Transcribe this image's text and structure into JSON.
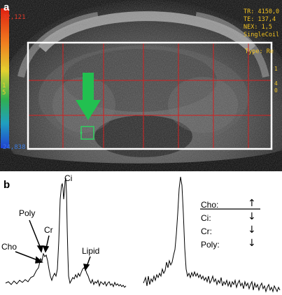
{
  "panel_a": {
    "label": "a",
    "scale_top": "32,121",
    "scale_bottom": "24,838",
    "scale_marks": [
      "R",
      "1",
      "5"
    ],
    "params": [
      "TR: 4150,0",
      "TE: 137,4",
      "NEX: 1,5",
      "SingleCoil"
    ],
    "type_label": "Type: Re",
    "right_marks": [
      "1",
      "4",
      "0"
    ]
  },
  "panel_b": {
    "label": "b",
    "peaks": {
      "ci": "Ci",
      "poly": "Poly",
      "cr": "Cr",
      "cho": "Cho",
      "lipid": "Lipid"
    },
    "legend": [
      {
        "name": "Cho:",
        "arrow": "up"
      },
      {
        "name": "Ci:",
        "arrow": "down"
      },
      {
        "name": "Cr:",
        "arrow": "down"
      },
      {
        "name": "Poly:",
        "arrow": "down"
      }
    ]
  },
  "colors": {
    "grid_red": "#d42020",
    "voxel_green": "#22c050",
    "overlay_yellow": "#f0c020",
    "box_white": "#ffffff"
  }
}
